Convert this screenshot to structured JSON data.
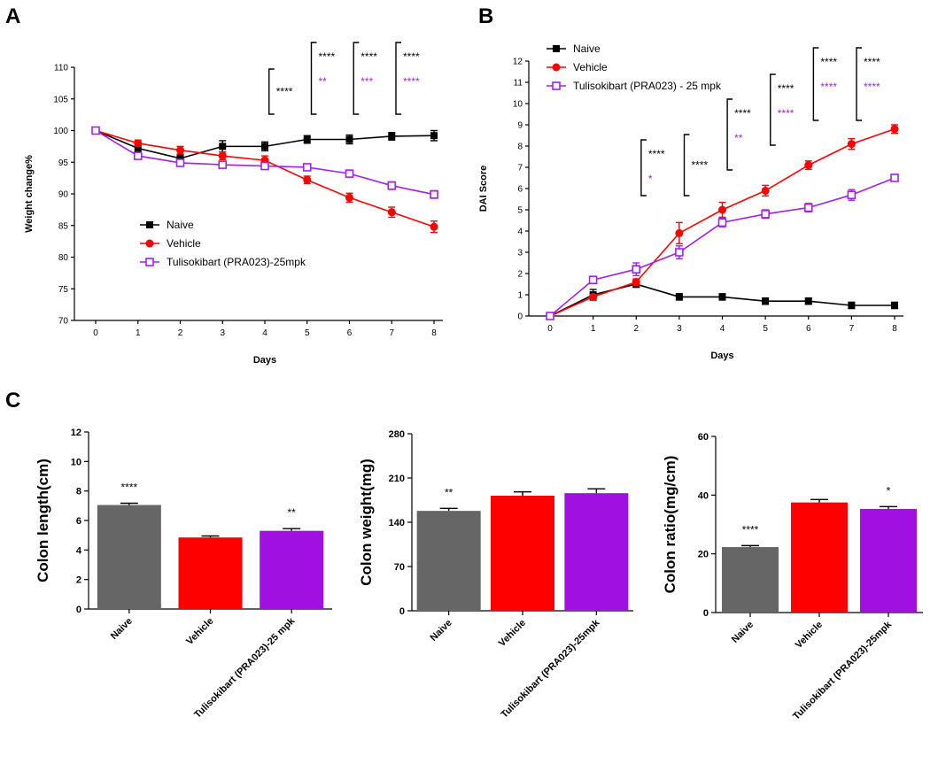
{
  "figure": {
    "panel_labels": [
      "A",
      "B",
      "C"
    ]
  },
  "chart_data": [
    {
      "id": "A",
      "type": "line",
      "xlabel": "Days",
      "ylabel": "Weight change%",
      "x": [
        0,
        1,
        2,
        3,
        4,
        5,
        6,
        7,
        8
      ],
      "ylim": [
        70,
        110
      ],
      "yticks": [
        70,
        75,
        80,
        85,
        90,
        95,
        100,
        105,
        110
      ],
      "xticks": [
        0,
        1,
        2,
        3,
        4,
        5,
        6,
        7,
        8
      ],
      "legend_position": "center-left",
      "series": [
        {
          "name": "Naive",
          "color": "#000000",
          "marker": "square-filled",
          "values": [
            100,
            97.2,
            95.6,
            97.5,
            97.5,
            98.6,
            98.6,
            99.1,
            99.2
          ],
          "errors": [
            0,
            0.6,
            0.6,
            0.9,
            0.7,
            0.6,
            0.7,
            0.6,
            0.8
          ]
        },
        {
          "name": "Vehicle",
          "color": "#ff0000",
          "marker": "circle-filled",
          "values": [
            100,
            98,
            96.9,
            96,
            95.3,
            92.2,
            89.4,
            87.1,
            84.8
          ],
          "errors": [
            0,
            0.5,
            0.6,
            0.6,
            0.7,
            0.6,
            0.7,
            0.8,
            0.9
          ]
        },
        {
          "name": "Tulisokibart (PRA023)-25mpk",
          "color": "#a020f0",
          "marker": "square-open",
          "values": [
            100,
            96,
            94.9,
            94.6,
            94.4,
            94.2,
            93.2,
            91.3,
            89.9
          ],
          "errors": [
            0,
            0.4,
            0.4,
            0.4,
            0.4,
            0.4,
            0.5,
            0.6,
            0.6
          ]
        }
      ],
      "significance": [
        {
          "day": 5,
          "top": "****",
          "bottom": ""
        },
        {
          "day": 6,
          "top": "****",
          "bottom": "**"
        },
        {
          "day": 7,
          "top": "****",
          "bottom": "***"
        },
        {
          "day": 8,
          "top": "****",
          "bottom": "****"
        }
      ]
    },
    {
      "id": "B",
      "type": "line",
      "xlabel": "Days",
      "ylabel": "DAI Score",
      "x": [
        0,
        1,
        2,
        3,
        4,
        5,
        6,
        7,
        8
      ],
      "ylim": [
        0,
        12
      ],
      "yticks": [
        0,
        1,
        2,
        3,
        4,
        5,
        6,
        7,
        8,
        9,
        10,
        11,
        12
      ],
      "xticks": [
        0,
        1,
        2,
        3,
        4,
        5,
        6,
        7,
        8
      ],
      "legend_position": "top-left",
      "series": [
        {
          "name": "Naive",
          "color": "#000000",
          "marker": "square-filled",
          "values": [
            0,
            1.0,
            1.5,
            0.9,
            0.9,
            0.7,
            0.7,
            0.5,
            0.5
          ],
          "errors": [
            0,
            0.25,
            0.15,
            0.15,
            0.15,
            0.15,
            0.15,
            0.15,
            0.15
          ]
        },
        {
          "name": "Vehicle",
          "color": "#ff0000",
          "marker": "circle-filled",
          "values": [
            0,
            0.9,
            1.6,
            3.9,
            5.0,
            5.9,
            7.1,
            8.1,
            8.8
          ],
          "errors": [
            0,
            0.1,
            0.15,
            0.5,
            0.35,
            0.25,
            0.2,
            0.25,
            0.2
          ]
        },
        {
          "name": "Tulisokibart (PRA023) - 25 mpk",
          "color": "#a020f0",
          "marker": "square-open",
          "values": [
            0,
            1.7,
            2.2,
            3.0,
            4.4,
            4.8,
            5.1,
            5.7,
            6.5
          ],
          "errors": [
            0,
            0.15,
            0.3,
            0.3,
            0.2,
            0.2,
            0.2,
            0.25,
            0.15
          ]
        }
      ],
      "significance": [
        {
          "day": 3,
          "top": "****",
          "bottom": "*"
        },
        {
          "day": 4,
          "top": "****",
          "bottom": ""
        },
        {
          "day": 5,
          "top": "****",
          "bottom": "**"
        },
        {
          "day": 6,
          "top": "****",
          "bottom": "****"
        },
        {
          "day": 7,
          "top": "****",
          "bottom": "****"
        },
        {
          "day": 8,
          "top": "****",
          "bottom": "****"
        }
      ]
    },
    {
      "id": "C1",
      "type": "bar",
      "ylabel": "Colon length(cm)",
      "categories": [
        "Naive",
        "Vehicle",
        "Tulisokibart (PRA023)-25 mpk"
      ],
      "values": [
        7.05,
        4.85,
        5.3
      ],
      "errors": [
        0.12,
        0.1,
        0.15
      ],
      "colors": [
        "#666666",
        "#ff0000",
        "#a010e0"
      ],
      "annotations": [
        "****",
        "",
        "**"
      ],
      "ylim": [
        0,
        12
      ],
      "yticks": [
        0,
        2,
        4,
        6,
        8,
        10,
        12
      ]
    },
    {
      "id": "C2",
      "type": "bar",
      "ylabel": "Colon weight(mg)",
      "categories": [
        "Naive",
        "Vehicle",
        "Tulisokibart (PRA023)-25mpk"
      ],
      "values": [
        158,
        182,
        186
      ],
      "errors": [
        4,
        6,
        7
      ],
      "colors": [
        "#666666",
        "#ff0000",
        "#a010e0"
      ],
      "annotations": [
        "**",
        "",
        ""
      ],
      "ylim": [
        0,
        280
      ],
      "yticks": [
        0,
        70,
        140,
        210,
        280
      ]
    },
    {
      "id": "C3",
      "type": "bar",
      "ylabel": "Colon ratio(mg/cm)",
      "categories": [
        "Naive",
        "Vehicle",
        "Tulisokibart (PRA023)-25mpk"
      ],
      "values": [
        22.3,
        37.5,
        35.3
      ],
      "errors": [
        0.5,
        1.0,
        0.8
      ],
      "colors": [
        "#666666",
        "#ff0000",
        "#a010e0"
      ],
      "annotations": [
        "****",
        "",
        "*"
      ],
      "ylim": [
        0,
        60
      ],
      "yticks": [
        0,
        20,
        40,
        60
      ]
    }
  ]
}
